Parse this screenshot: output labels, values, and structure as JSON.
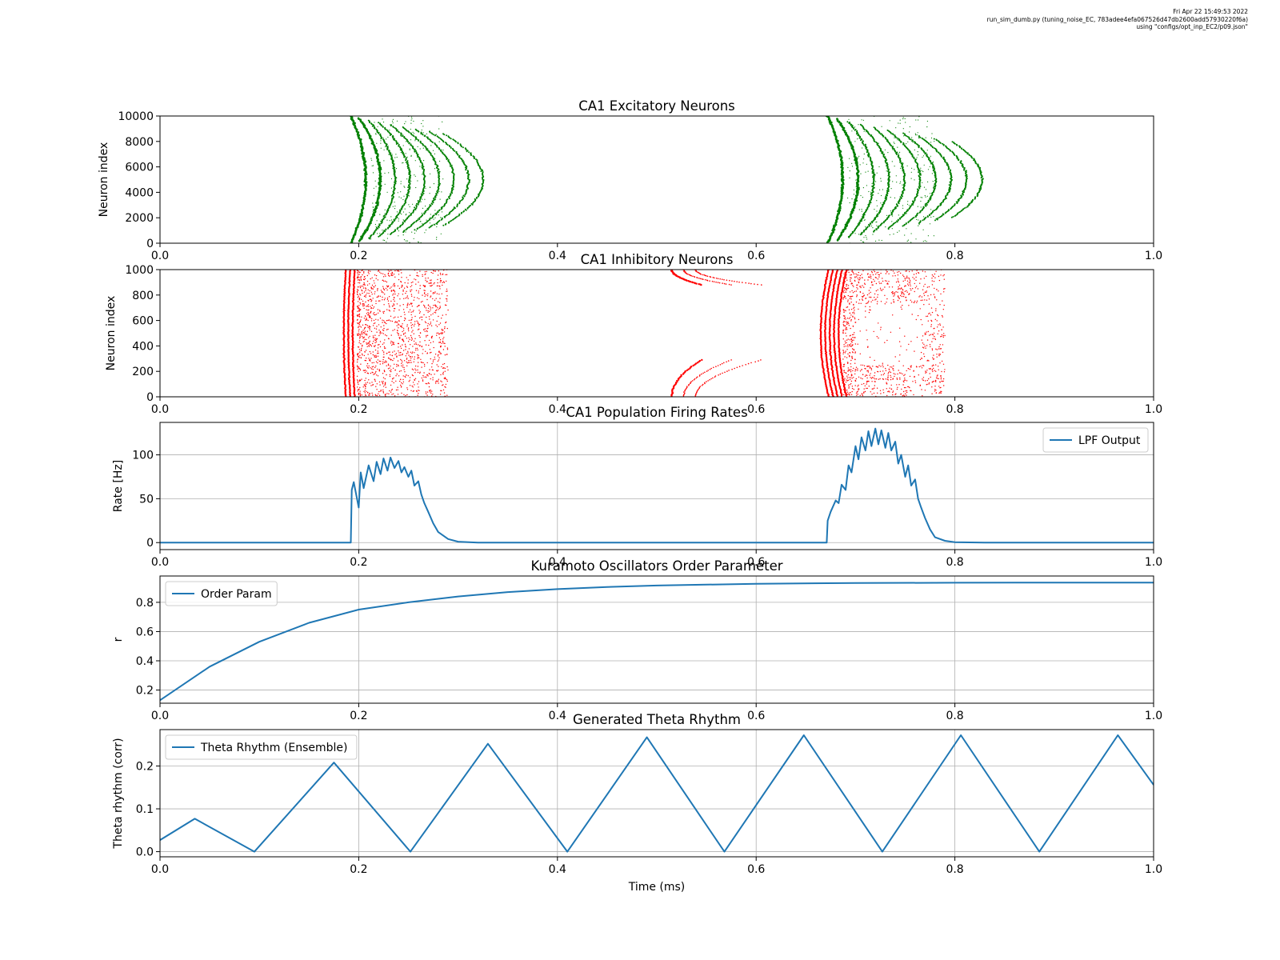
{
  "header": {
    "line1": "Fri Apr 22 15:49:53 2022",
    "line2": "run_sim_dumb.py (tuning_noise_EC, 783adee4efa067526d47db2600add57930220f6a)",
    "line3": "using \"configs/opt_inp_EC2/p09.json\""
  },
  "colors": {
    "excitatory": "#008000",
    "inhibitory": "#ff0000",
    "line": "#1f77b4",
    "grid": "#b0b0b0"
  },
  "chart_data": [
    {
      "type": "scatter",
      "title": "CA1 Excitatory Neurons",
      "xlabel": "",
      "ylabel": "Neuron index",
      "xlim": [
        0,
        1.0
      ],
      "ylim": [
        0,
        10000
      ],
      "xticks": [
        "0.0",
        "0.2",
        "0.4",
        "0.6",
        "0.8",
        "1.0"
      ],
      "yticks": [
        "0",
        "2000",
        "4000",
        "6000",
        "8000",
        "10000"
      ],
      "grid": false,
      "color": "#008000",
      "bursts": [
        {
          "onset": 0.192,
          "end": 0.285,
          "n_waves": 9,
          "depth": 0.35,
          "center_index": 5000
        },
        {
          "onset": 0.672,
          "end": 0.78,
          "n_waves": 10,
          "depth": 0.45,
          "center_index": 5000
        }
      ]
    },
    {
      "type": "scatter",
      "title": "CA1 Inhibitory Neurons",
      "xlabel": "",
      "ylabel": "Neuron index",
      "xlim": [
        0,
        1.0
      ],
      "ylim": [
        0,
        1000
      ],
      "xticks": [
        "0.0",
        "0.2",
        "0.4",
        "0.6",
        "0.8",
        "1.0"
      ],
      "yticks": [
        "0",
        "200",
        "400",
        "600",
        "800",
        "1000"
      ],
      "grid": false,
      "color": "#ff0000",
      "bursts": [
        {
          "onset": 0.185,
          "end": 0.29,
          "lead_lines": 3,
          "center_index": 500
        },
        {
          "onset": 0.665,
          "end": 0.79,
          "lead_lines": 5,
          "center_index": 500,
          "hole": [
            0.7,
            0.765,
            250,
            730
          ]
        }
      ],
      "edge_arcs": [
        {
          "onset": 0.515,
          "end": 0.575,
          "index_range": [
            880,
            1000
          ]
        },
        {
          "onset": 0.515,
          "end": 0.575,
          "index_range": [
            0,
            290
          ]
        }
      ]
    },
    {
      "type": "line",
      "title": "CA1 Population Firing Rates",
      "xlabel": "",
      "ylabel": "Rate [Hz]",
      "xlim": [
        0,
        1.0
      ],
      "ylim": [
        -8,
        137
      ],
      "xticks": [
        "0.0",
        "0.2",
        "0.4",
        "0.6",
        "0.8",
        "1.0"
      ],
      "yticks": [
        "0",
        "50",
        "100"
      ],
      "grid": true,
      "legend": "top-right",
      "series": [
        {
          "name": "LPF Output",
          "x": [
            0,
            0.192,
            0.193,
            0.195,
            0.2,
            0.202,
            0.205,
            0.21,
            0.215,
            0.218,
            0.222,
            0.225,
            0.229,
            0.232,
            0.236,
            0.24,
            0.243,
            0.246,
            0.25,
            0.253,
            0.256,
            0.26,
            0.263,
            0.266,
            0.27,
            0.275,
            0.28,
            0.29,
            0.3,
            0.32,
            0.4,
            0.6,
            0.671,
            0.672,
            0.675,
            0.68,
            0.683,
            0.686,
            0.69,
            0.693,
            0.696,
            0.7,
            0.703,
            0.706,
            0.71,
            0.713,
            0.716,
            0.72,
            0.723,
            0.726,
            0.73,
            0.733,
            0.736,
            0.74,
            0.743,
            0.746,
            0.75,
            0.753,
            0.756,
            0.76,
            0.763,
            0.766,
            0.77,
            0.775,
            0.78,
            0.79,
            0.8,
            0.83,
            1.0
          ],
          "values": [
            0,
            0,
            60,
            69,
            40,
            80,
            62,
            88,
            70,
            92,
            78,
            96,
            82,
            97,
            85,
            93,
            80,
            86,
            75,
            82,
            65,
            70,
            55,
            45,
            35,
            22,
            12,
            4,
            1,
            0,
            0,
            0,
            0,
            25,
            35,
            48,
            45,
            66,
            60,
            88,
            80,
            110,
            95,
            120,
            105,
            127,
            110,
            130,
            112,
            128,
            108,
            125,
            105,
            115,
            90,
            100,
            75,
            88,
            65,
            72,
            50,
            40,
            28,
            15,
            6,
            2,
            0.5,
            0,
            0
          ]
        }
      ]
    },
    {
      "type": "line",
      "title": "Kuramoto Oscillators Order Parameter",
      "xlabel": "",
      "ylabel": "r",
      "xlim": [
        0,
        1.0
      ],
      "ylim": [
        0.11,
        0.98
      ],
      "xticks": [
        "0.0",
        "0.2",
        "0.4",
        "0.6",
        "0.8",
        "1.0"
      ],
      "yticks": [
        "0.2",
        "0.4",
        "0.6",
        "0.8"
      ],
      "grid": true,
      "legend": "top-left",
      "series": [
        {
          "name": "Order Param",
          "x": [
            0,
            0.05,
            0.1,
            0.15,
            0.2,
            0.25,
            0.3,
            0.35,
            0.4,
            0.45,
            0.5,
            0.6,
            0.7,
            0.8,
            0.9,
            1.0
          ],
          "values": [
            0.13,
            0.36,
            0.53,
            0.66,
            0.75,
            0.8,
            0.84,
            0.87,
            0.89,
            0.905,
            0.915,
            0.927,
            0.932,
            0.934,
            0.935,
            0.935
          ]
        }
      ]
    },
    {
      "type": "line",
      "title": "Generated Theta Rhythm",
      "xlabel": "Time (ms)",
      "ylabel": "Theta rhythm (corr)",
      "xlim": [
        0,
        1.0
      ],
      "ylim": [
        -0.012,
        0.285
      ],
      "xticks": [
        "0.0",
        "0.2",
        "0.4",
        "0.6",
        "0.8",
        "1.0"
      ],
      "yticks": [
        "0.0",
        "0.1",
        "0.2"
      ],
      "grid": true,
      "legend": "top-left",
      "series": [
        {
          "name": "Theta Rhythm (Ensemble)",
          "x": [
            0,
            0.035,
            0.095,
            0.175,
            0.252,
            0.33,
            0.41,
            0.49,
            0.568,
            0.648,
            0.727,
            0.806,
            0.885,
            0.964,
            1.0
          ],
          "values": [
            0.027,
            0.077,
            0.0,
            0.208,
            0.0,
            0.252,
            0.0,
            0.267,
            0.0,
            0.272,
            0.0,
            0.272,
            0.0,
            0.272,
            0.156
          ]
        }
      ]
    }
  ]
}
